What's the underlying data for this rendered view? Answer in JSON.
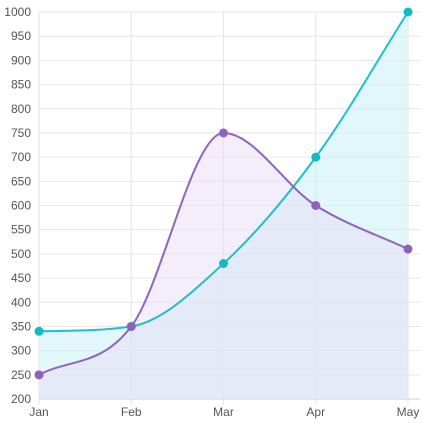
{
  "chart_data": {
    "type": "area",
    "title": "",
    "xlabel": "",
    "ylabel": "",
    "categories": [
      "Jan",
      "Feb",
      "Mar",
      "Apr",
      "May"
    ],
    "ylim": [
      200,
      1000
    ],
    "yticks": [
      200,
      250,
      300,
      350,
      400,
      450,
      500,
      550,
      600,
      650,
      700,
      750,
      800,
      850,
      900,
      950,
      1000
    ],
    "grid": true,
    "legend": "none",
    "smooth": true,
    "series": [
      {
        "values": [
          340,
          350,
          480,
          700,
          1000
        ],
        "line_color": "#1fbfca",
        "fill_color": "#c9f1f5",
        "marker_color": "#14b9c6"
      },
      {
        "values": [
          250,
          350,
          750,
          600,
          510
        ],
        "line_color": "#8e64c0",
        "fill_color": "#e9e0f6",
        "marker_color": "#8d62bf"
      }
    ]
  }
}
